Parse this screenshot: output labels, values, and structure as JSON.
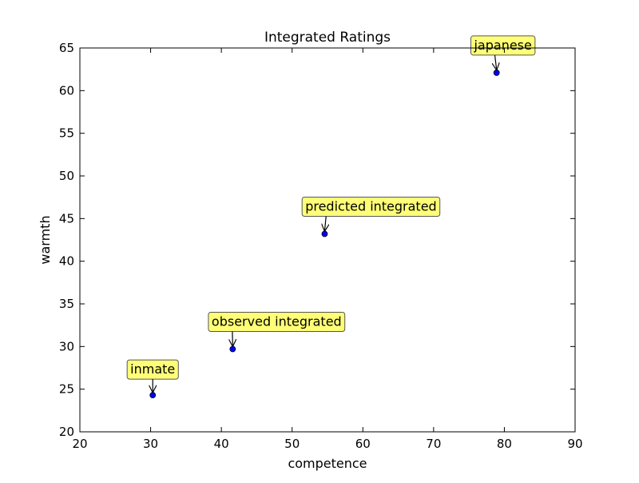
{
  "chart_data": {
    "type": "scatter",
    "title": "Integrated Ratings",
    "xlabel": "competence",
    "ylabel": "warmth",
    "xlim": [
      20,
      90
    ],
    "ylim": [
      20,
      65
    ],
    "xticks": [
      20,
      30,
      40,
      50,
      60,
      70,
      80,
      90
    ],
    "yticks": [
      20,
      25,
      30,
      35,
      40,
      45,
      50,
      55,
      60,
      65
    ],
    "grid": false,
    "marker_color": "#0000ff",
    "annotation_box_color": "#ffff77",
    "points": [
      {
        "label": "inmate",
        "x": 30.3,
        "y": 24.3
      },
      {
        "label": "observed integrated",
        "x": 41.6,
        "y": 29.7
      },
      {
        "label": "predicted integrated",
        "x": 54.6,
        "y": 43.2
      },
      {
        "label": "japanese",
        "x": 78.9,
        "y": 62.1
      }
    ]
  }
}
